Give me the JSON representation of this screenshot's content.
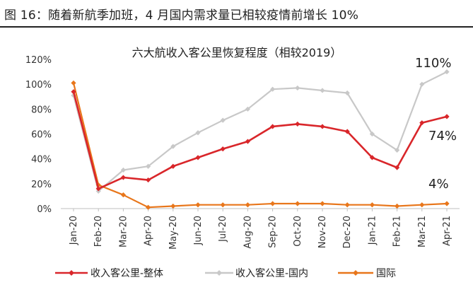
{
  "figure_title": "图 16：随着新航季加班，4 月国内需求量已相较疫情前增长 10%",
  "chart_data": {
    "type": "line",
    "title": "六大航收入客公里恢复程度（相较2019）",
    "categories": [
      "Jan-20",
      "Feb-20",
      "Mar-20",
      "Apr-20",
      "May-20",
      "Jun-20",
      "Jul-20",
      "Aug-20",
      "Sep-20",
      "Oct-20",
      "Nov-20",
      "Dec-20",
      "Jan-21",
      "Feb-21",
      "Mar-21",
      "Apr-21"
    ],
    "ylim": [
      0,
      120
    ],
    "yticks": [
      "0%",
      "20%",
      "40%",
      "60%",
      "80%",
      "100%",
      "120%"
    ],
    "grid": false,
    "legend_position": "bottom",
    "series": [
      {
        "name": "收入客公里-整体",
        "color": "#d9262a",
        "values": [
          94,
          16,
          25,
          23,
          34,
          41,
          48,
          54,
          66,
          68,
          66,
          62,
          41,
          33,
          69,
          74
        ]
      },
      {
        "name": "收入客公里-国内",
        "color": "#c8c8c8",
        "values": [
          91,
          14,
          31,
          34,
          50,
          61,
          71,
          80,
          96,
          97,
          95,
          93,
          60,
          47,
          100,
          110
        ]
      },
      {
        "name": "国际",
        "color": "#e8761b",
        "values": [
          101,
          19,
          11,
          1,
          2,
          3,
          3,
          3,
          4,
          4,
          4,
          3,
          3,
          2,
          3,
          4
        ]
      }
    ],
    "annotations": [
      "110%",
      "74%",
      "4%"
    ]
  }
}
